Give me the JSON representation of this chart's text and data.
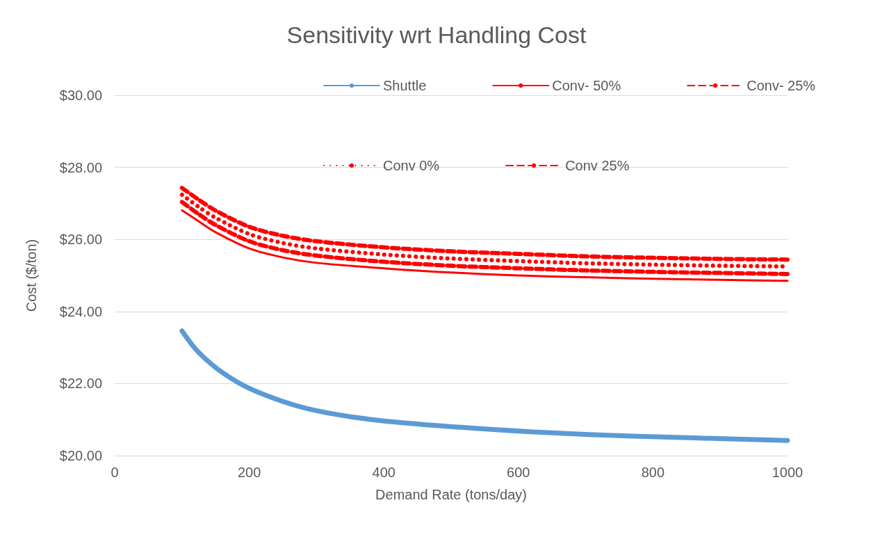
{
  "chart_data": {
    "type": "line",
    "title": "Sensitivity wrt Handling Cost",
    "xlabel": "Demand Rate (tons/day)",
    "ylabel": "Cost ($/ton)",
    "xlim": [
      0,
      1000
    ],
    "xticks": [
      0,
      200,
      400,
      600,
      800,
      1000
    ],
    "ylim": [
      20,
      30
    ],
    "yticks": [
      {
        "value": 20,
        "label": "$20.00"
      },
      {
        "value": 22,
        "label": "$22.00"
      },
      {
        "value": 24,
        "label": "$24.00"
      },
      {
        "value": 26,
        "label": "$26.00"
      },
      {
        "value": 28,
        "label": "$28.00"
      },
      {
        "value": 30,
        "label": "$30.00"
      }
    ],
    "grid": "y",
    "legend": "top",
    "marker": "none",
    "series": [
      {
        "name": "Shuttle",
        "color": "#5b9bd5",
        "line_style": "solid",
        "x": [
          100,
          124,
          162,
          208,
          285,
          382,
          511,
          640,
          770,
          1000
        ],
        "values": [
          23.46,
          22.88,
          22.28,
          21.8,
          21.31,
          21.0,
          20.79,
          20.64,
          20.54,
          20.42
        ]
      },
      {
        "name": "Conv- 50%",
        "color": "#ff0000",
        "line_style": "solid",
        "x": [
          100,
          125,
          150,
          200,
          250,
          300,
          400,
          500,
          600,
          700,
          800,
          900,
          1000
        ],
        "values": [
          26.81,
          26.5,
          26.2,
          25.75,
          25.5,
          25.35,
          25.2,
          25.08,
          25.0,
          24.95,
          24.91,
          24.88,
          24.85
        ]
      },
      {
        "name": "Conv- 25%",
        "color": "#ff0000",
        "line_style": "dashed",
        "x": [
          100,
          125,
          150,
          200,
          250,
          300,
          400,
          500,
          600,
          700,
          800,
          900,
          1000
        ],
        "values": [
          27.04,
          26.7,
          26.4,
          25.95,
          25.7,
          25.55,
          25.38,
          25.27,
          25.2,
          25.14,
          25.1,
          25.07,
          25.04
        ]
      },
      {
        "name": "Conv 0%",
        "color": "#ff0000",
        "line_style": "dotted",
        "x": [
          100,
          125,
          150,
          200,
          250,
          300,
          400,
          500,
          600,
          700,
          800,
          900,
          1000
        ],
        "values": [
          27.24,
          26.9,
          26.6,
          26.15,
          25.9,
          25.75,
          25.58,
          25.47,
          25.4,
          25.34,
          25.3,
          25.27,
          25.25
        ]
      },
      {
        "name": "Conv 25%",
        "color": "#ff0000",
        "line_style": "dashed",
        "x": [
          100,
          125,
          150,
          200,
          250,
          300,
          400,
          500,
          600,
          700,
          800,
          900,
          1000
        ],
        "values": [
          27.43,
          27.1,
          26.8,
          26.35,
          26.1,
          25.95,
          25.78,
          25.67,
          25.6,
          25.53,
          25.49,
          25.46,
          25.44
        ]
      }
    ]
  }
}
